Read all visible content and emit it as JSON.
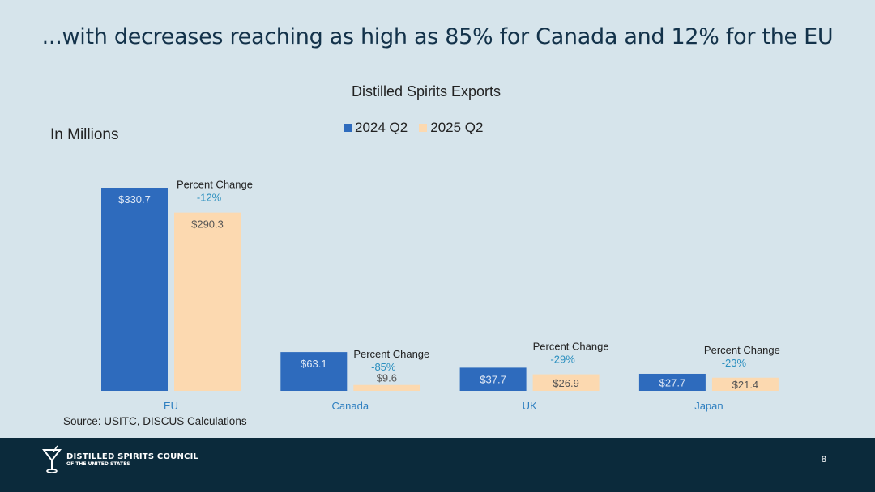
{
  "slide": {
    "title": "...with decreases reaching as high as 85% for Canada and 12% for the EU",
    "units": "In Millions",
    "source": "Source: USITC, DISCUS Calculations",
    "page_number": "8",
    "logo": {
      "line1": "DISTILLED SPIRITS COUNCIL",
      "line2": "OF THE UNITED STATES"
    }
  },
  "chart_data": {
    "type": "bar",
    "title": "Distilled Spirits Exports",
    "categories": [
      "EU",
      "Canada",
      "UK",
      "Japan"
    ],
    "series": [
      {
        "name": "2024 Q2",
        "color": "#2e6bbd",
        "values": [
          330.7,
          63.1,
          37.7,
          27.7
        ],
        "labels": [
          "$330.7",
          "$63.1",
          "$37.7",
          "$27.7"
        ]
      },
      {
        "name": "2025 Q2",
        "color": "#fcd9b0",
        "values": [
          290.3,
          9.6,
          26.9,
          21.4
        ],
        "labels": [
          "$290.3",
          "$9.6",
          "$26.9",
          "$21.4"
        ]
      }
    ],
    "annotations": [
      {
        "category": "EU",
        "label": "Percent Change",
        "value": "-12%"
      },
      {
        "category": "Canada",
        "label": "Percent Change",
        "value": "-85%"
      },
      {
        "category": "UK",
        "label": "Percent Change",
        "value": "-29%"
      },
      {
        "category": "Japan",
        "label": "Percent Change",
        "value": "-23%"
      }
    ],
    "ylim": [
      0,
      330.7
    ],
    "grid": false,
    "legend_position": "top",
    "colors": {
      "annotation_value": "#2b8fbf",
      "category_label": "#2e7fc0"
    }
  }
}
